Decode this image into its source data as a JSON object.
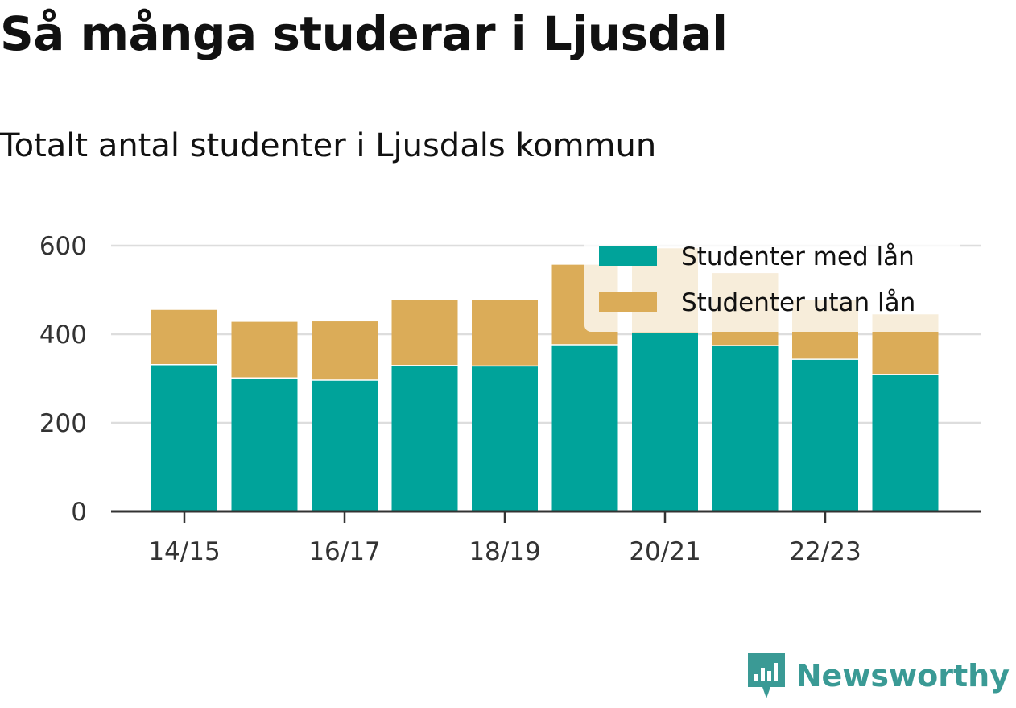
{
  "title": "Så många studerar i Ljusdal",
  "subtitle": "Totalt antal studenter i Ljusdals kommun",
  "brand": "Newsworthy",
  "colors": {
    "with_loan": "#00a39a",
    "without_loan": "#dbac58",
    "grid": "#dddddd",
    "axis": "#333333",
    "brand": "#3a9a95"
  },
  "chart_data": {
    "type": "bar",
    "stacked": true,
    "categories": [
      "14/15",
      "15/16",
      "16/17",
      "17/18",
      "18/19",
      "19/20",
      "20/21",
      "21/22",
      "22/23",
      "23/24"
    ],
    "x_tick_labels": [
      "14/15",
      "16/17",
      "18/19",
      "20/21",
      "22/23"
    ],
    "series": [
      {
        "name": "Studenter med lån",
        "values": [
          330,
          300,
          295,
          328,
          327,
          375,
          402,
          373,
          342,
          308
        ]
      },
      {
        "name": "Studenter utan lån",
        "values": [
          125,
          128,
          134,
          150,
          150,
          182,
          192,
          165,
          135,
          137
        ]
      }
    ],
    "ylim": [
      0,
      600
    ],
    "y_ticks": [
      0,
      200,
      400,
      600
    ],
    "grid": true,
    "legend_position": "top-right"
  }
}
